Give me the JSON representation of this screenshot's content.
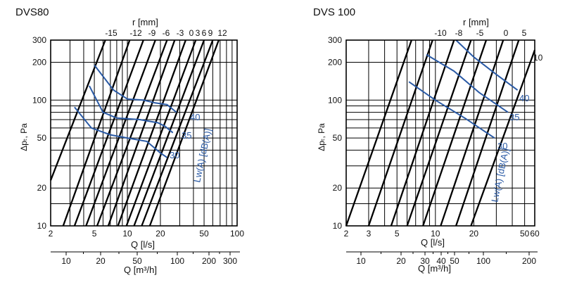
{
  "chart_data": [
    {
      "type": "line",
      "title": "DVS80",
      "top_axis_label": "r [mm]",
      "top_axis_ticks": [
        "-15",
        "-12",
        "-9",
        "-6",
        "-3",
        "0",
        "3",
        "6",
        "9",
        "12"
      ],
      "x_label": "Q [l/s]",
      "x_ticks": [
        "2",
        "5",
        "10",
        "20",
        "50",
        "100"
      ],
      "x_scale": "log",
      "xlim": [
        2,
        100
      ],
      "x2_label": "Q [m³/h]",
      "x2_ticks": [
        "10",
        "20",
        "50",
        "100",
        "200",
        "300"
      ],
      "y_label": "Δpₜ, Pa",
      "y_ticks": [
        "10",
        "20",
        "50",
        "100",
        "200",
        "300"
      ],
      "y_scale": "log",
      "ylim": [
        10,
        300
      ],
      "grid": true,
      "series": [
        {
          "values": [
            [
              2.0,
              23
            ],
            [
              6.3,
              300
            ]
          ]
        },
        {
          "values": [
            [
              2.6,
              10
            ],
            [
              10.5,
              300
            ]
          ]
        },
        {
          "values": [
            [
              3.3,
              10
            ],
            [
              14.0,
              300
            ]
          ]
        },
        {
          "values": [
            [
              4.2,
              10
            ],
            [
              18.0,
              300
            ]
          ]
        },
        {
          "values": [
            [
              5.3,
              10
            ],
            [
              23.0,
              300
            ]
          ]
        },
        {
          "values": [
            [
              6.7,
              10
            ],
            [
              27.0,
              300
            ]
          ]
        },
        {
          "values": [
            [
              8.2,
              10
            ],
            [
              34.0,
              300
            ]
          ]
        },
        {
          "values": [
            [
              9.8,
              10
            ],
            [
              42.0,
              300
            ]
          ]
        },
        {
          "values": [
            [
              11.5,
              10
            ],
            [
              50.0,
              300
            ]
          ]
        },
        {
          "values": [
            [
              13.5,
              10
            ],
            [
              60.0,
              300
            ]
          ]
        },
        {
          "values": [
            [
              16.0,
              10
            ],
            [
              68.0,
              300
            ]
          ]
        }
      ],
      "noise_series": [
        {
          "name": "40",
          "values": [
            [
              5.0,
              190
            ],
            [
              7.5,
              120
            ],
            [
              10.0,
              102
            ],
            [
              14.0,
              100
            ],
            [
              18.0,
              95
            ],
            [
              23.0,
              92
            ],
            [
              28.0,
              80
            ]
          ]
        },
        {
          "name": "35",
          "values": [
            [
              4.5,
              130
            ],
            [
              6.0,
              80
            ],
            [
              8.0,
              72
            ],
            [
              13.0,
              70
            ],
            [
              19.0,
              66
            ],
            [
              22.0,
              62
            ],
            [
              26.0,
              55
            ]
          ]
        },
        {
          "name": "30",
          "values": [
            [
              3.3,
              88
            ],
            [
              4.7,
              60
            ],
            [
              7.0,
              53
            ],
            [
              10.0,
              50
            ],
            [
              15.0,
              47
            ],
            [
              20.0,
              38
            ],
            [
              23.0,
              35
            ]
          ]
        }
      ],
      "noise_axis_label": "Lw(A) [dB(A)]"
    },
    {
      "type": "line",
      "title": "DVS 100",
      "top_axis_label": "r [mm]",
      "top_axis_ticks": [
        "-10",
        "-8",
        "-5",
        "0",
        "5"
      ],
      "x_label": "Q [l/s]",
      "x_ticks": [
        "2",
        "3",
        "5",
        "10",
        "20",
        "50",
        "60"
      ],
      "x_scale": "log",
      "xlim": [
        2,
        60
      ],
      "x2_label": "Q [m³/h]",
      "x2_ticks": [
        "10",
        "20",
        "30",
        "40",
        "50",
        "100",
        "200"
      ],
      "y_label": "Δpₜ, Pa",
      "y_ticks": [
        "10",
        "20",
        "50",
        "100",
        "200",
        "300"
      ],
      "y_scale": "log",
      "ylim": [
        10,
        300
      ],
      "grid": true,
      "series": [
        {
          "values": [
            [
              2.0,
              10
            ],
            [
              6.5,
              300
            ]
          ]
        },
        {
          "values": [
            [
              3.0,
              10
            ],
            [
              9.5,
              300
            ]
          ]
        },
        {
          "values": [
            [
              4.5,
              10
            ],
            [
              14.0,
              300
            ]
          ]
        },
        {
          "values": [
            [
              6.0,
              10
            ],
            [
              19.0,
              300
            ]
          ]
        },
        {
          "values": [
            [
              8.0,
              10
            ],
            [
              25.0,
              300
            ]
          ]
        },
        {
          "values": [
            [
              11.0,
              10
            ],
            [
              34.0,
              300
            ]
          ]
        },
        {
          "values": [
            [
              14.5,
              10
            ],
            [
              45.0,
              300
            ]
          ]
        },
        {
          "name": "10",
          "values": [
            [
              19.0,
              10
            ],
            [
              60.0,
              250
            ]
          ]
        }
      ],
      "noise_series": [
        {
          "name": "40",
          "values": [
            [
              14.5,
              300
            ],
            [
              20.0,
              220
            ],
            [
              30.0,
              160
            ],
            [
              44.0,
              120
            ]
          ]
        },
        {
          "name": "35",
          "values": [
            [
              8.5,
              230
            ],
            [
              14.0,
              170
            ],
            [
              22.0,
              115
            ],
            [
              37.0,
              80
            ]
          ]
        },
        {
          "name": "30",
          "values": [
            [
              6.2,
              140
            ],
            [
              10.0,
              100
            ],
            [
              17.0,
              72
            ],
            [
              29.0,
              50
            ]
          ]
        }
      ],
      "noise_axis_label": "Lw(A) [dB(A)]"
    }
  ]
}
